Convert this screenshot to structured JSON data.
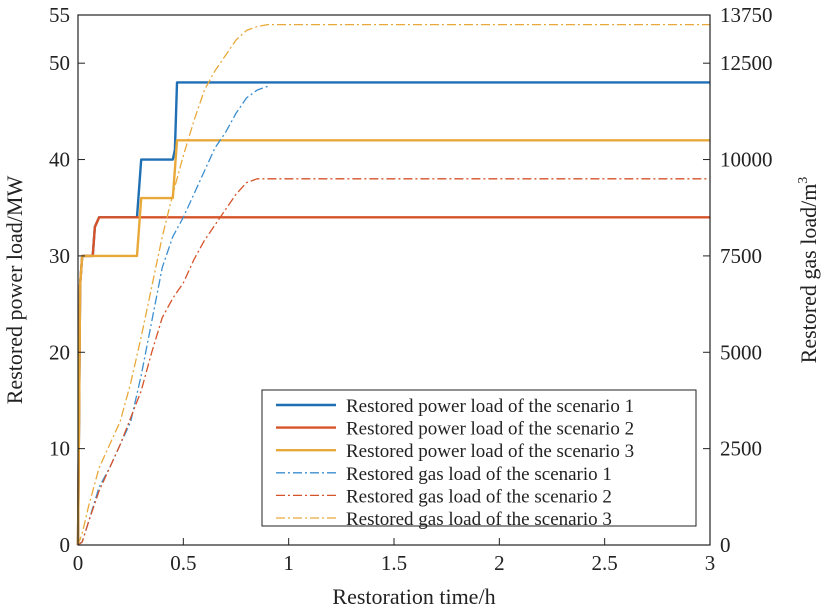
{
  "chart_data": {
    "type": "line",
    "x": [
      0,
      0.01,
      0.02,
      0.03,
      0.05,
      0.07,
      0.09,
      0.1,
      0.15,
      0.2,
      0.25,
      0.29,
      0.3,
      0.33,
      0.35,
      0.4,
      0.45,
      0.47,
      0.48,
      0.5,
      0.52,
      0.55,
      0.58,
      0.6,
      0.65,
      0.7,
      0.75,
      0.8,
      0.85,
      0.9,
      0.92,
      0.95,
      1.0,
      1.5,
      2.0,
      2.5,
      3.0
    ],
    "xlabel": "Restoration time/h",
    "ylabel_left": "Restored power load/MW",
    "ylabel_right": "Restored gas load/m",
    "ylabel_right_superscript": "3",
    "xlim": [
      0,
      3
    ],
    "ylim_left": [
      0,
      55
    ],
    "ylim_right": [
      0,
      13750
    ],
    "xticks": [
      "0",
      "0.5",
      "1",
      "1.5",
      "2",
      "2.5",
      "3"
    ],
    "yticks_left": [
      "0",
      "10",
      "20",
      "30",
      "40",
      "50",
      "55"
    ],
    "yticks_right": [
      "0",
      "2500",
      "5000",
      "7500",
      "10000",
      "12500",
      "13750"
    ],
    "legend_position": "bottom-right",
    "series": [
      {
        "name": "Restored power load of the scenario 1",
        "axis": "left",
        "style": "solid",
        "color": "#1f6fb5",
        "points": [
          [
            0,
            0
          ],
          [
            0.01,
            27
          ],
          [
            0.02,
            30
          ],
          [
            0.07,
            30
          ],
          [
            0.08,
            33
          ],
          [
            0.1,
            34
          ],
          [
            0.28,
            34
          ],
          [
            0.3,
            40
          ],
          [
            0.45,
            40
          ],
          [
            0.46,
            41
          ],
          [
            0.47,
            48
          ],
          [
            3,
            48
          ]
        ]
      },
      {
        "name": "Restored power load of the scenario 2",
        "axis": "left",
        "style": "solid",
        "color": "#d6532a",
        "points": [
          [
            0,
            0
          ],
          [
            0.01,
            27
          ],
          [
            0.02,
            30
          ],
          [
            0.07,
            30
          ],
          [
            0.08,
            33
          ],
          [
            0.1,
            34
          ],
          [
            3,
            34
          ]
        ]
      },
      {
        "name": "Restored power load of the scenario 3",
        "axis": "left",
        "style": "solid",
        "color": "#e8a93a",
        "points": [
          [
            0,
            0
          ],
          [
            0.01,
            27
          ],
          [
            0.02,
            30
          ],
          [
            0.28,
            30
          ],
          [
            0.3,
            36
          ],
          [
            0.45,
            36
          ],
          [
            0.47,
            42
          ],
          [
            3,
            42
          ]
        ]
      },
      {
        "name": "Restored gas load of the scenario 1",
        "axis": "right",
        "style": "dashdot",
        "color": "#3b8fd0",
        "points": [
          [
            0,
            0
          ],
          [
            0.02,
            80
          ],
          [
            0.05,
            600
          ],
          [
            0.1,
            1500
          ],
          [
            0.15,
            2000
          ],
          [
            0.2,
            2600
          ],
          [
            0.25,
            3200
          ],
          [
            0.3,
            4400
          ],
          [
            0.35,
            5800
          ],
          [
            0.4,
            7200
          ],
          [
            0.45,
            8000
          ],
          [
            0.5,
            8500
          ],
          [
            0.55,
            9100
          ],
          [
            0.6,
            9700
          ],
          [
            0.65,
            10300
          ],
          [
            0.7,
            10700
          ],
          [
            0.75,
            11200
          ],
          [
            0.8,
            11600
          ],
          [
            0.85,
            11800
          ],
          [
            0.9,
            11900
          ]
        ]
      },
      {
        "name": "Restored gas load of the scenario 2",
        "axis": "right",
        "style": "dashdot",
        "color": "#d6532a",
        "points": [
          [
            0,
            0
          ],
          [
            0.02,
            80
          ],
          [
            0.05,
            600
          ],
          [
            0.1,
            1400
          ],
          [
            0.15,
            2000
          ],
          [
            0.2,
            2600
          ],
          [
            0.25,
            3300
          ],
          [
            0.3,
            4000
          ],
          [
            0.35,
            5000
          ],
          [
            0.4,
            5900
          ],
          [
            0.45,
            6400
          ],
          [
            0.5,
            6800
          ],
          [
            0.55,
            7400
          ],
          [
            0.6,
            7900
          ],
          [
            0.65,
            8300
          ],
          [
            0.7,
            8700
          ],
          [
            0.75,
            9100
          ],
          [
            0.8,
            9400
          ],
          [
            0.85,
            9500
          ],
          [
            3,
            9500
          ]
        ]
      },
      {
        "name": "Restored gas load of the scenario 3",
        "axis": "right",
        "style": "dashdot",
        "color": "#e8a93a",
        "points": [
          [
            0,
            0
          ],
          [
            0.02,
            300
          ],
          [
            0.05,
            1000
          ],
          [
            0.1,
            2000
          ],
          [
            0.15,
            2600
          ],
          [
            0.2,
            3200
          ],
          [
            0.25,
            4200
          ],
          [
            0.3,
            5400
          ],
          [
            0.35,
            6700
          ],
          [
            0.4,
            8000
          ],
          [
            0.45,
            9100
          ],
          [
            0.5,
            10100
          ],
          [
            0.55,
            11000
          ],
          [
            0.6,
            11800
          ],
          [
            0.65,
            12300
          ],
          [
            0.7,
            12700
          ],
          [
            0.75,
            13100
          ],
          [
            0.8,
            13350
          ],
          [
            0.85,
            13450
          ],
          [
            0.9,
            13500
          ],
          [
            3,
            13500
          ]
        ]
      }
    ]
  }
}
